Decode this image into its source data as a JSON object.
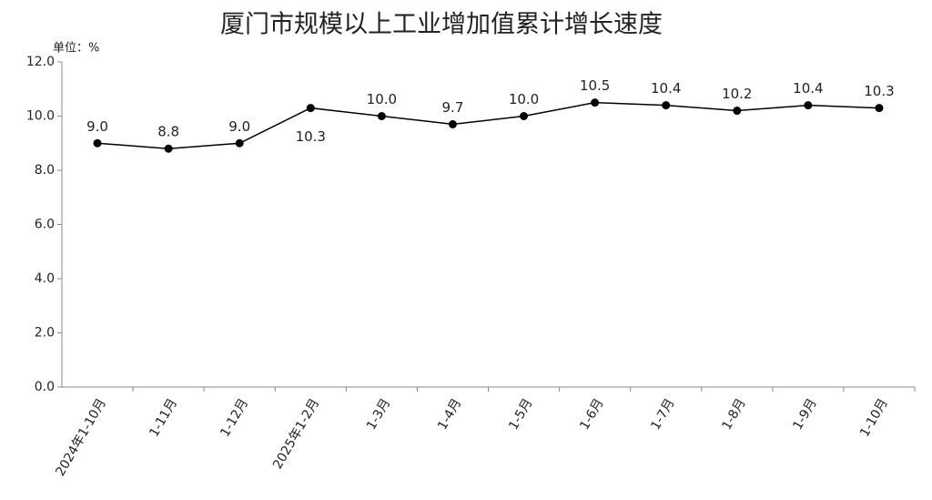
{
  "chart_data": {
    "type": "line",
    "title": "厦门市规模以上工业增加值累计增长速度",
    "unit_label": "单位：%",
    "categories": [
      "2024年1-10月",
      "1-11月",
      "1-12月",
      "2025年1-2月",
      "1-3月",
      "1-4月",
      "1-5月",
      "1-6月",
      "1-7月",
      "1-8月",
      "1-9月",
      "1-10月"
    ],
    "series": [
      {
        "color": "#000000",
        "values": [
          9.0,
          8.8,
          9.0,
          10.3,
          10.0,
          9.7,
          10.0,
          10.5,
          10.4,
          10.2,
          10.4,
          10.3
        ],
        "value_labels": [
          "9.0",
          "8.8",
          "9.0",
          "10.3",
          "10.0",
          "9.7",
          "10.0",
          "10.5",
          "10.4",
          "10.2",
          "10.4",
          "10.3"
        ]
      }
    ],
    "ylim": [
      0,
      12
    ],
    "yticks": [
      {
        "value": 0,
        "label": "0.0"
      },
      {
        "value": 2,
        "label": "2.0"
      },
      {
        "value": 4,
        "label": "4.0"
      },
      {
        "value": 6,
        "label": "6.0"
      },
      {
        "value": 8,
        "label": "8.0"
      },
      {
        "value": 10,
        "label": "10.0"
      },
      {
        "value": 12,
        "label": "12.0"
      }
    ],
    "grid": false
  }
}
